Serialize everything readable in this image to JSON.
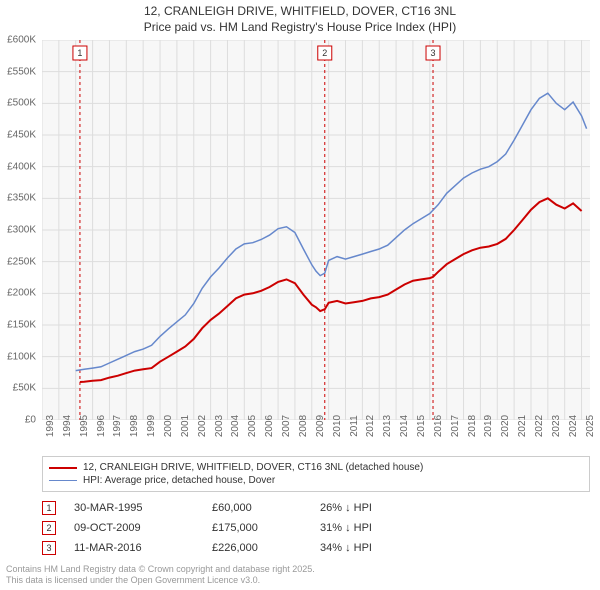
{
  "title": {
    "line1": "12, CRANLEIGH DRIVE, WHITFIELD, DOVER, CT16 3NL",
    "line2": "Price paid vs. HM Land Registry's House Price Index (HPI)"
  },
  "chart": {
    "type": "line",
    "background_color": "#f7f7f7",
    "grid_color": "#dddddd",
    "axis_font_color": "#666666",
    "axis_fontsize": 10,
    "x": {
      "min": 1993,
      "max": 2025.5,
      "ticks": [
        1993,
        1994,
        1995,
        1996,
        1997,
        1998,
        1999,
        2000,
        2001,
        2002,
        2003,
        2004,
        2005,
        2006,
        2007,
        2008,
        2009,
        2010,
        2011,
        2012,
        2013,
        2014,
        2015,
        2016,
        2017,
        2018,
        2019,
        2020,
        2021,
        2022,
        2023,
        2024,
        2025
      ]
    },
    "y": {
      "min": 0,
      "max": 600000,
      "ticks": [
        0,
        50000,
        100000,
        150000,
        200000,
        250000,
        300000,
        350000,
        400000,
        450000,
        500000,
        550000,
        600000
      ],
      "tick_labels": [
        "£0",
        "£50K",
        "£100K",
        "£150K",
        "£200K",
        "£250K",
        "£300K",
        "£350K",
        "£400K",
        "£450K",
        "£500K",
        "£550K",
        "£600K"
      ]
    },
    "series": [
      {
        "name": "price_paid",
        "label": "12, CRANLEIGH DRIVE, WHITFIELD, DOVER, CT16 3NL (detached house)",
        "color": "#cc0000",
        "line_width": 2,
        "data": [
          [
            1995.25,
            60000
          ],
          [
            1995.5,
            60500
          ],
          [
            1996,
            62000
          ],
          [
            1996.5,
            63000
          ],
          [
            1997,
            67000
          ],
          [
            1997.5,
            70000
          ],
          [
            1998,
            74000
          ],
          [
            1998.5,
            78000
          ],
          [
            1999,
            80000
          ],
          [
            1999.5,
            82000
          ],
          [
            2000,
            92000
          ],
          [
            2000.5,
            100000
          ],
          [
            2001,
            108000
          ],
          [
            2001.5,
            116000
          ],
          [
            2002,
            128000
          ],
          [
            2002.5,
            145000
          ],
          [
            2003,
            158000
          ],
          [
            2003.5,
            168000
          ],
          [
            2004,
            180000
          ],
          [
            2004.5,
            192000
          ],
          [
            2005,
            198000
          ],
          [
            2005.5,
            200000
          ],
          [
            2006,
            204000
          ],
          [
            2006.5,
            210000
          ],
          [
            2007,
            218000
          ],
          [
            2007.5,
            222000
          ],
          [
            2008,
            216000
          ],
          [
            2008.5,
            198000
          ],
          [
            2009,
            182000
          ],
          [
            2009.25,
            178000
          ],
          [
            2009.5,
            172000
          ],
          [
            2009.77,
            175000
          ],
          [
            2010,
            185000
          ],
          [
            2010.5,
            188000
          ],
          [
            2011,
            184000
          ],
          [
            2011.5,
            186000
          ],
          [
            2012,
            188000
          ],
          [
            2012.5,
            192000
          ],
          [
            2013,
            194000
          ],
          [
            2013.5,
            198000
          ],
          [
            2014,
            206000
          ],
          [
            2014.5,
            214000
          ],
          [
            2015,
            220000
          ],
          [
            2015.5,
            222000
          ],
          [
            2016,
            224000
          ],
          [
            2016.19,
            226000
          ],
          [
            2016.5,
            234000
          ],
          [
            2017,
            246000
          ],
          [
            2017.5,
            254000
          ],
          [
            2018,
            262000
          ],
          [
            2018.5,
            268000
          ],
          [
            2019,
            272000
          ],
          [
            2019.5,
            274000
          ],
          [
            2020,
            278000
          ],
          [
            2020.5,
            286000
          ],
          [
            2021,
            300000
          ],
          [
            2021.5,
            316000
          ],
          [
            2022,
            332000
          ],
          [
            2022.5,
            344000
          ],
          [
            2023,
            350000
          ],
          [
            2023.5,
            340000
          ],
          [
            2024,
            334000
          ],
          [
            2024.5,
            342000
          ],
          [
            2025,
            330000
          ]
        ]
      },
      {
        "name": "hpi",
        "label": "HPI: Average price, detached house, Dover",
        "color": "#6688cc",
        "line_width": 1.5,
        "data": [
          [
            1995,
            78000
          ],
          [
            1995.5,
            80000
          ],
          [
            1996,
            82000
          ],
          [
            1996.5,
            84000
          ],
          [
            1997,
            90000
          ],
          [
            1997.5,
            96000
          ],
          [
            1998,
            102000
          ],
          [
            1998.5,
            108000
          ],
          [
            1999,
            112000
          ],
          [
            1999.5,
            118000
          ],
          [
            2000,
            132000
          ],
          [
            2000.5,
            144000
          ],
          [
            2001,
            155000
          ],
          [
            2001.5,
            166000
          ],
          [
            2002,
            184000
          ],
          [
            2002.5,
            208000
          ],
          [
            2003,
            226000
          ],
          [
            2003.5,
            240000
          ],
          [
            2004,
            256000
          ],
          [
            2004.5,
            270000
          ],
          [
            2005,
            278000
          ],
          [
            2005.5,
            280000
          ],
          [
            2006,
            285000
          ],
          [
            2006.5,
            292000
          ],
          [
            2007,
            302000
          ],
          [
            2007.5,
            305000
          ],
          [
            2008,
            296000
          ],
          [
            2008.5,
            270000
          ],
          [
            2009,
            245000
          ],
          [
            2009.25,
            235000
          ],
          [
            2009.5,
            228000
          ],
          [
            2009.77,
            232000
          ],
          [
            2010,
            252000
          ],
          [
            2010.5,
            258000
          ],
          [
            2011,
            254000
          ],
          [
            2011.5,
            258000
          ],
          [
            2012,
            262000
          ],
          [
            2012.5,
            266000
          ],
          [
            2013,
            270000
          ],
          [
            2013.5,
            276000
          ],
          [
            2014,
            288000
          ],
          [
            2014.5,
            300000
          ],
          [
            2015,
            310000
          ],
          [
            2015.5,
            318000
          ],
          [
            2016,
            326000
          ],
          [
            2016.5,
            340000
          ],
          [
            2017,
            358000
          ],
          [
            2017.5,
            370000
          ],
          [
            2018,
            382000
          ],
          [
            2018.5,
            390000
          ],
          [
            2019,
            396000
          ],
          [
            2019.5,
            400000
          ],
          [
            2020,
            408000
          ],
          [
            2020.5,
            420000
          ],
          [
            2021,
            442000
          ],
          [
            2021.5,
            466000
          ],
          [
            2022,
            490000
          ],
          [
            2022.5,
            508000
          ],
          [
            2023,
            516000
          ],
          [
            2023.5,
            500000
          ],
          [
            2024,
            490000
          ],
          [
            2024.5,
            502000
          ],
          [
            2025,
            480000
          ],
          [
            2025.3,
            460000
          ]
        ]
      }
    ],
    "sale_markers": [
      {
        "n": "1",
        "x": 1995.25,
        "color": "#cc0000"
      },
      {
        "n": "2",
        "x": 2009.77,
        "color": "#cc0000"
      },
      {
        "n": "3",
        "x": 2016.19,
        "color": "#cc0000"
      }
    ]
  },
  "legend": {
    "border_color": "#cccccc"
  },
  "sales": [
    {
      "n": "1",
      "date": "30-MAR-1995",
      "price": "£60,000",
      "delta": "26% ↓ HPI",
      "marker_color": "#cc0000"
    },
    {
      "n": "2",
      "date": "09-OCT-2009",
      "price": "£175,000",
      "delta": "31% ↓ HPI",
      "marker_color": "#cc0000"
    },
    {
      "n": "3",
      "date": "11-MAR-2016",
      "price": "£226,000",
      "delta": "34% ↓ HPI",
      "marker_color": "#cc0000"
    }
  ],
  "footer": {
    "line1": "Contains HM Land Registry data © Crown copyright and database right 2025.",
    "line2": "This data is licensed under the Open Government Licence v3.0."
  }
}
